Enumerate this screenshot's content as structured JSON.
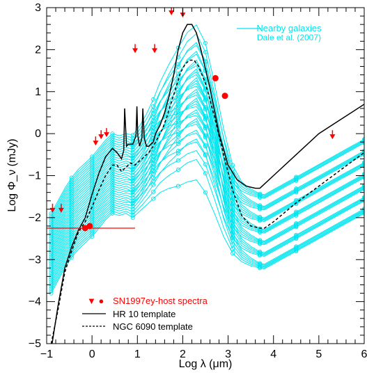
{
  "chart_data": {
    "type": "line",
    "xlabel": "Log λ (μm)",
    "ylabel": "Log Φ_ν (mJy)",
    "xlim": [
      -1,
      6
    ],
    "ylim": [
      -5,
      3
    ],
    "x_ticks": [
      "−1",
      "0",
      "1",
      "2",
      "3",
      "4",
      "5",
      "6"
    ],
    "y_ticks": [
      "−5",
      "−4",
      "−3",
      "−2",
      "−1",
      "0",
      "1",
      "2",
      "3"
    ],
    "legend": {
      "top_right": {
        "name": "Nearby galaxies",
        "source": "Dale et al. (2007)",
        "color": "#00e5ee"
      },
      "bottom_left": [
        {
          "symbol": "▼ ●",
          "name": "SN1997ey-host spectra",
          "color": "#ff0000"
        },
        {
          "symbol": "solid",
          "name": "HR 10 template",
          "color": "#000000"
        },
        {
          "symbol": "dashed",
          "name": "NGC 6090 template",
          "color": "#000000"
        }
      ]
    },
    "series": [
      {
        "name": "HR 10 template",
        "style": "solid",
        "color": "#000000",
        "x": [
          -0.88,
          -0.75,
          -0.6,
          -0.45,
          -0.3,
          -0.15,
          0.0,
          0.15,
          0.3,
          0.45,
          0.55,
          0.65,
          0.7,
          0.72,
          0.76,
          0.8,
          0.9,
          0.97,
          0.99,
          1.01,
          1.05,
          1.1,
          1.12,
          1.15,
          1.2,
          1.25,
          1.3,
          1.35,
          1.4,
          1.5,
          1.6,
          1.7,
          1.8,
          1.9,
          2.0,
          2.1,
          2.2,
          2.3,
          2.4,
          2.6,
          2.8,
          3.0,
          3.2,
          3.4,
          3.6,
          3.7,
          3.8,
          4.0,
          4.4,
          5.0,
          5.5,
          6.0
        ],
        "y": [
          -5.0,
          -4.1,
          -3.2,
          -2.7,
          -2.3,
          -2.0,
          -1.45,
          -0.95,
          -0.55,
          -0.35,
          -0.45,
          -0.6,
          -0.4,
          0.6,
          -0.3,
          -0.25,
          -0.25,
          -0.05,
          0.65,
          -0.05,
          -0.3,
          -0.1,
          0.6,
          -0.1,
          -0.3,
          -0.3,
          -0.25,
          -0.2,
          0.0,
          0.2,
          0.5,
          0.9,
          1.4,
          2.0,
          2.4,
          2.6,
          2.6,
          2.4,
          2.0,
          1.1,
          0.0,
          -0.75,
          -1.1,
          -1.25,
          -1.3,
          -1.3,
          -1.2,
          -1.0,
          -0.6,
          0.0,
          0.35,
          0.7
        ]
      },
      {
        "name": "NGC 6090 template",
        "style": "dashed",
        "color": "#000000",
        "x": [
          -0.9,
          -0.75,
          -0.6,
          -0.45,
          -0.3,
          -0.15,
          0.0,
          0.15,
          0.3,
          0.45,
          0.55,
          0.65,
          0.75,
          0.85,
          0.95,
          1.05,
          1.15,
          1.25,
          1.35,
          1.45,
          1.55,
          1.65,
          1.75,
          1.85,
          1.95,
          2.05,
          2.15,
          2.25,
          2.35,
          2.5,
          2.7,
          2.9,
          3.1,
          3.3,
          3.5,
          3.7,
          3.8,
          4.0,
          4.5,
          5.0,
          5.5,
          6.0
        ],
        "y": [
          -5.0,
          -4.2,
          -3.3,
          -2.8,
          -2.35,
          -2.1,
          -1.75,
          -1.35,
          -1.0,
          -0.75,
          -0.75,
          -0.9,
          -0.8,
          -0.7,
          -0.75,
          -0.65,
          -0.55,
          -0.45,
          -0.3,
          -0.1,
          0.1,
          0.4,
          0.75,
          1.1,
          1.45,
          1.65,
          1.75,
          1.75,
          1.6,
          1.2,
          0.4,
          -0.5,
          -1.35,
          -1.95,
          -2.2,
          -2.25,
          -2.25,
          -2.1,
          -1.65,
          -1.25,
          -0.85,
          -0.45
        ]
      }
    ],
    "nearby_galaxies": {
      "color": "#00e5ee",
      "count": 36,
      "x": [
        -0.9,
        -0.75,
        -0.6,
        -0.45,
        -0.3,
        -0.15,
        0.0,
        0.15,
        0.3,
        0.45,
        0.6,
        0.75,
        0.9,
        1.05,
        1.2,
        1.35,
        1.5,
        1.7,
        1.9,
        2.1,
        2.3,
        2.5,
        2.7,
        2.9,
        3.1,
        3.3,
        3.5,
        3.7,
        3.8,
        4.0,
        4.5,
        5.0,
        5.5,
        6.0
      ],
      "shape_offsets": [
        -3.3,
        -3.0,
        -2.7,
        -2.45,
        -2.25,
        -2.1,
        -1.95,
        -1.75,
        -1.55,
        -1.4,
        -1.45,
        -1.4,
        -1.5,
        -1.35,
        -1.2,
        -1.05,
        -0.9,
        -0.8,
        -0.75,
        -0.65,
        -0.6,
        -0.9,
        -1.4,
        -1.95,
        -2.35,
        -2.55,
        -2.65,
        -2.7,
        -2.72,
        -2.6,
        -2.3,
        -2.0,
        -1.7,
        -1.4
      ],
      "ir_excess_scale": [
        0,
        0,
        0,
        0,
        0,
        0,
        0,
        0,
        0,
        0,
        0,
        0,
        0.05,
        0.1,
        0.2,
        0.35,
        0.55,
        0.8,
        1.05,
        1.25,
        1.35,
        1.25,
        0.9,
        0.5,
        0.15,
        0,
        -0.05,
        -0.1,
        -0.1,
        -0.1,
        -0.1,
        -0.1,
        -0.1,
        -0.1
      ],
      "norm_range": [
        0.0,
        1.9
      ],
      "ir_range": [
        0.0,
        1.6
      ]
    },
    "observations": {
      "color": "#ff0000",
      "upper_limits": [
        {
          "x": -0.87,
          "y": -1.85
        },
        {
          "x": -0.68,
          "y": -1.85
        },
        {
          "x": 0.08,
          "y": -0.25
        },
        {
          "x": 0.2,
          "y": -0.1
        },
        {
          "x": 0.32,
          "y": -0.05
        },
        {
          "x": 0.95,
          "y": 1.95
        },
        {
          "x": 1.38,
          "y": 1.95
        },
        {
          "x": 1.75,
          "y": 2.85
        },
        {
          "x": 2.0,
          "y": 2.8
        },
        {
          "x": 5.3,
          "y": -0.1
        }
      ],
      "points": [
        {
          "x": -0.15,
          "y": -2.25
        },
        {
          "x": -0.05,
          "y": -2.2
        },
        {
          "x": 2.72,
          "y": 1.32
        },
        {
          "x": 2.93,
          "y": 0.9
        }
      ],
      "hline": {
        "x1": -1.0,
        "x2": 0.95,
        "y": -2.25
      }
    }
  }
}
